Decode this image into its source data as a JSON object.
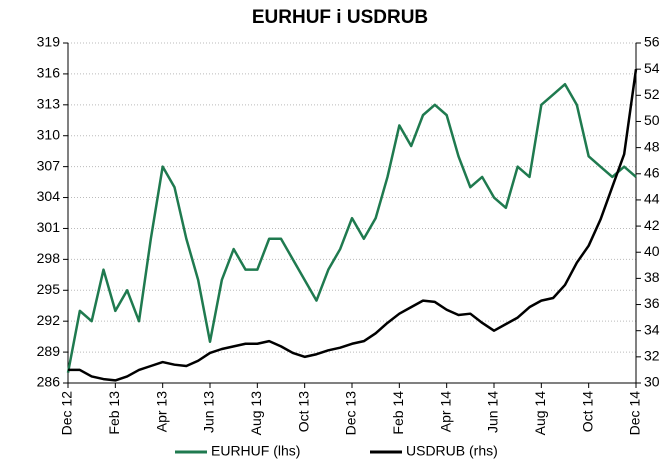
{
  "chart_data": {
    "type": "line",
    "title": "EURHUF i USDRUB",
    "categories": [
      "Dec 12",
      null,
      null,
      null,
      "Feb 13",
      null,
      null,
      null,
      "Apr 13",
      null,
      null,
      null,
      "Jun 13",
      null,
      null,
      null,
      "Aug 13",
      null,
      null,
      null,
      "Oct 13",
      null,
      null,
      null,
      "Dec 13",
      null,
      null,
      null,
      "Feb 14",
      null,
      null,
      null,
      "Apr 14",
      null,
      null,
      null,
      "Jun 14",
      null,
      null,
      null,
      "Aug 14",
      null,
      null,
      null,
      "Oct 14",
      null,
      null,
      null,
      "Dec 14"
    ],
    "series": [
      {
        "name": "EURHUF (lhs)",
        "color": "#1f7a4f",
        "values": [
          287,
          293,
          292,
          297,
          293,
          295,
          292,
          300,
          307,
          305,
          300,
          296,
          290,
          296,
          299,
          297,
          297,
          300,
          300,
          298,
          296,
          294,
          297,
          299,
          302,
          300,
          302,
          306,
          311,
          309,
          312,
          313,
          312,
          308,
          305,
          306,
          304,
          303,
          307,
          306,
          313,
          314,
          315,
          313,
          308,
          307,
          306,
          307,
          306
        ]
      },
      {
        "name": "USDRUB (rhs)",
        "color": "#000000",
        "axis": "y2",
        "values": [
          31,
          31,
          30.5,
          30.3,
          30.2,
          30.5,
          31,
          31.3,
          31.6,
          31.4,
          31.3,
          31.7,
          32.3,
          32.6,
          32.8,
          33,
          33,
          33.2,
          32.8,
          32.3,
          32,
          32.2,
          32.5,
          32.7,
          33,
          33.2,
          33.8,
          34.6,
          35.3,
          35.8,
          36.3,
          36.2,
          35.6,
          35.2,
          35.3,
          34.6,
          34,
          34.5,
          35,
          35.8,
          36.3,
          36.5,
          37.5,
          39.2,
          40.5,
          42.5,
          45,
          47.5,
          54
        ]
      }
    ],
    "ylim": [
      286,
      319
    ],
    "yticks": [
      286,
      289,
      292,
      295,
      298,
      301,
      304,
      307,
      310,
      313,
      316,
      319
    ],
    "y2lim": [
      30,
      56
    ],
    "y2ticks": [
      30,
      32,
      34,
      36,
      38,
      40,
      42,
      44,
      46,
      48,
      50,
      52,
      54,
      56
    ],
    "grid": true,
    "legend": "bottom"
  }
}
